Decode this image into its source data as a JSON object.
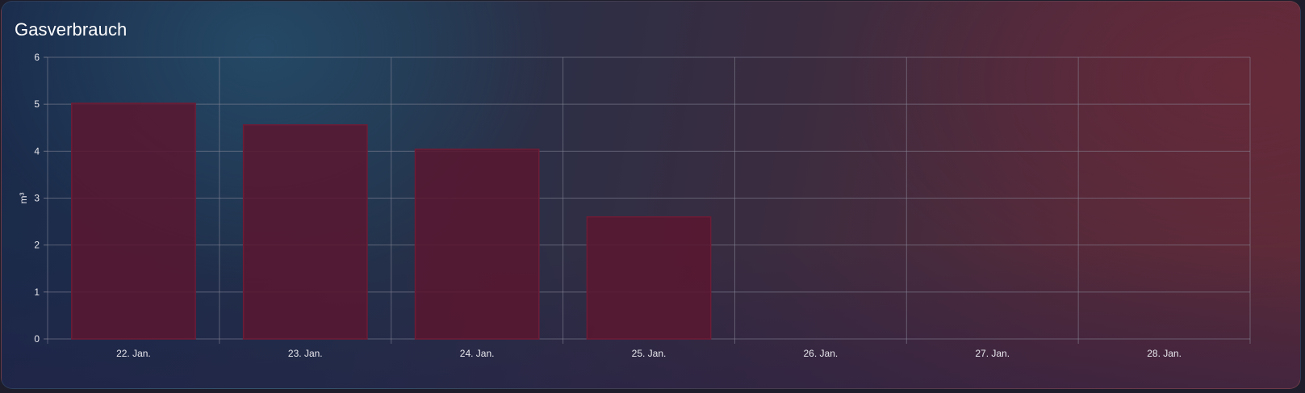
{
  "card": {
    "title": "Gasverbrauch"
  },
  "colors": {
    "bar_fill": "#5a1630",
    "bar_stroke": "#6e1c36",
    "grid": "#8a8a9a",
    "text": "#e8e8ee"
  },
  "chart_data": {
    "type": "bar",
    "categories": [
      "22. Jan.",
      "23. Jan.",
      "24. Jan.",
      "25. Jan.",
      "26. Jan.",
      "27. Jan.",
      "28. Jan."
    ],
    "values": [
      5.02,
      4.56,
      4.04,
      2.6,
      null,
      null,
      null
    ],
    "xlabel": "",
    "ylabel": "m³",
    "ylim": [
      0,
      6
    ],
    "yticks": [
      "0",
      "1",
      "2",
      "3",
      "4",
      "5",
      "6"
    ],
    "grid": true,
    "legend": "none"
  }
}
